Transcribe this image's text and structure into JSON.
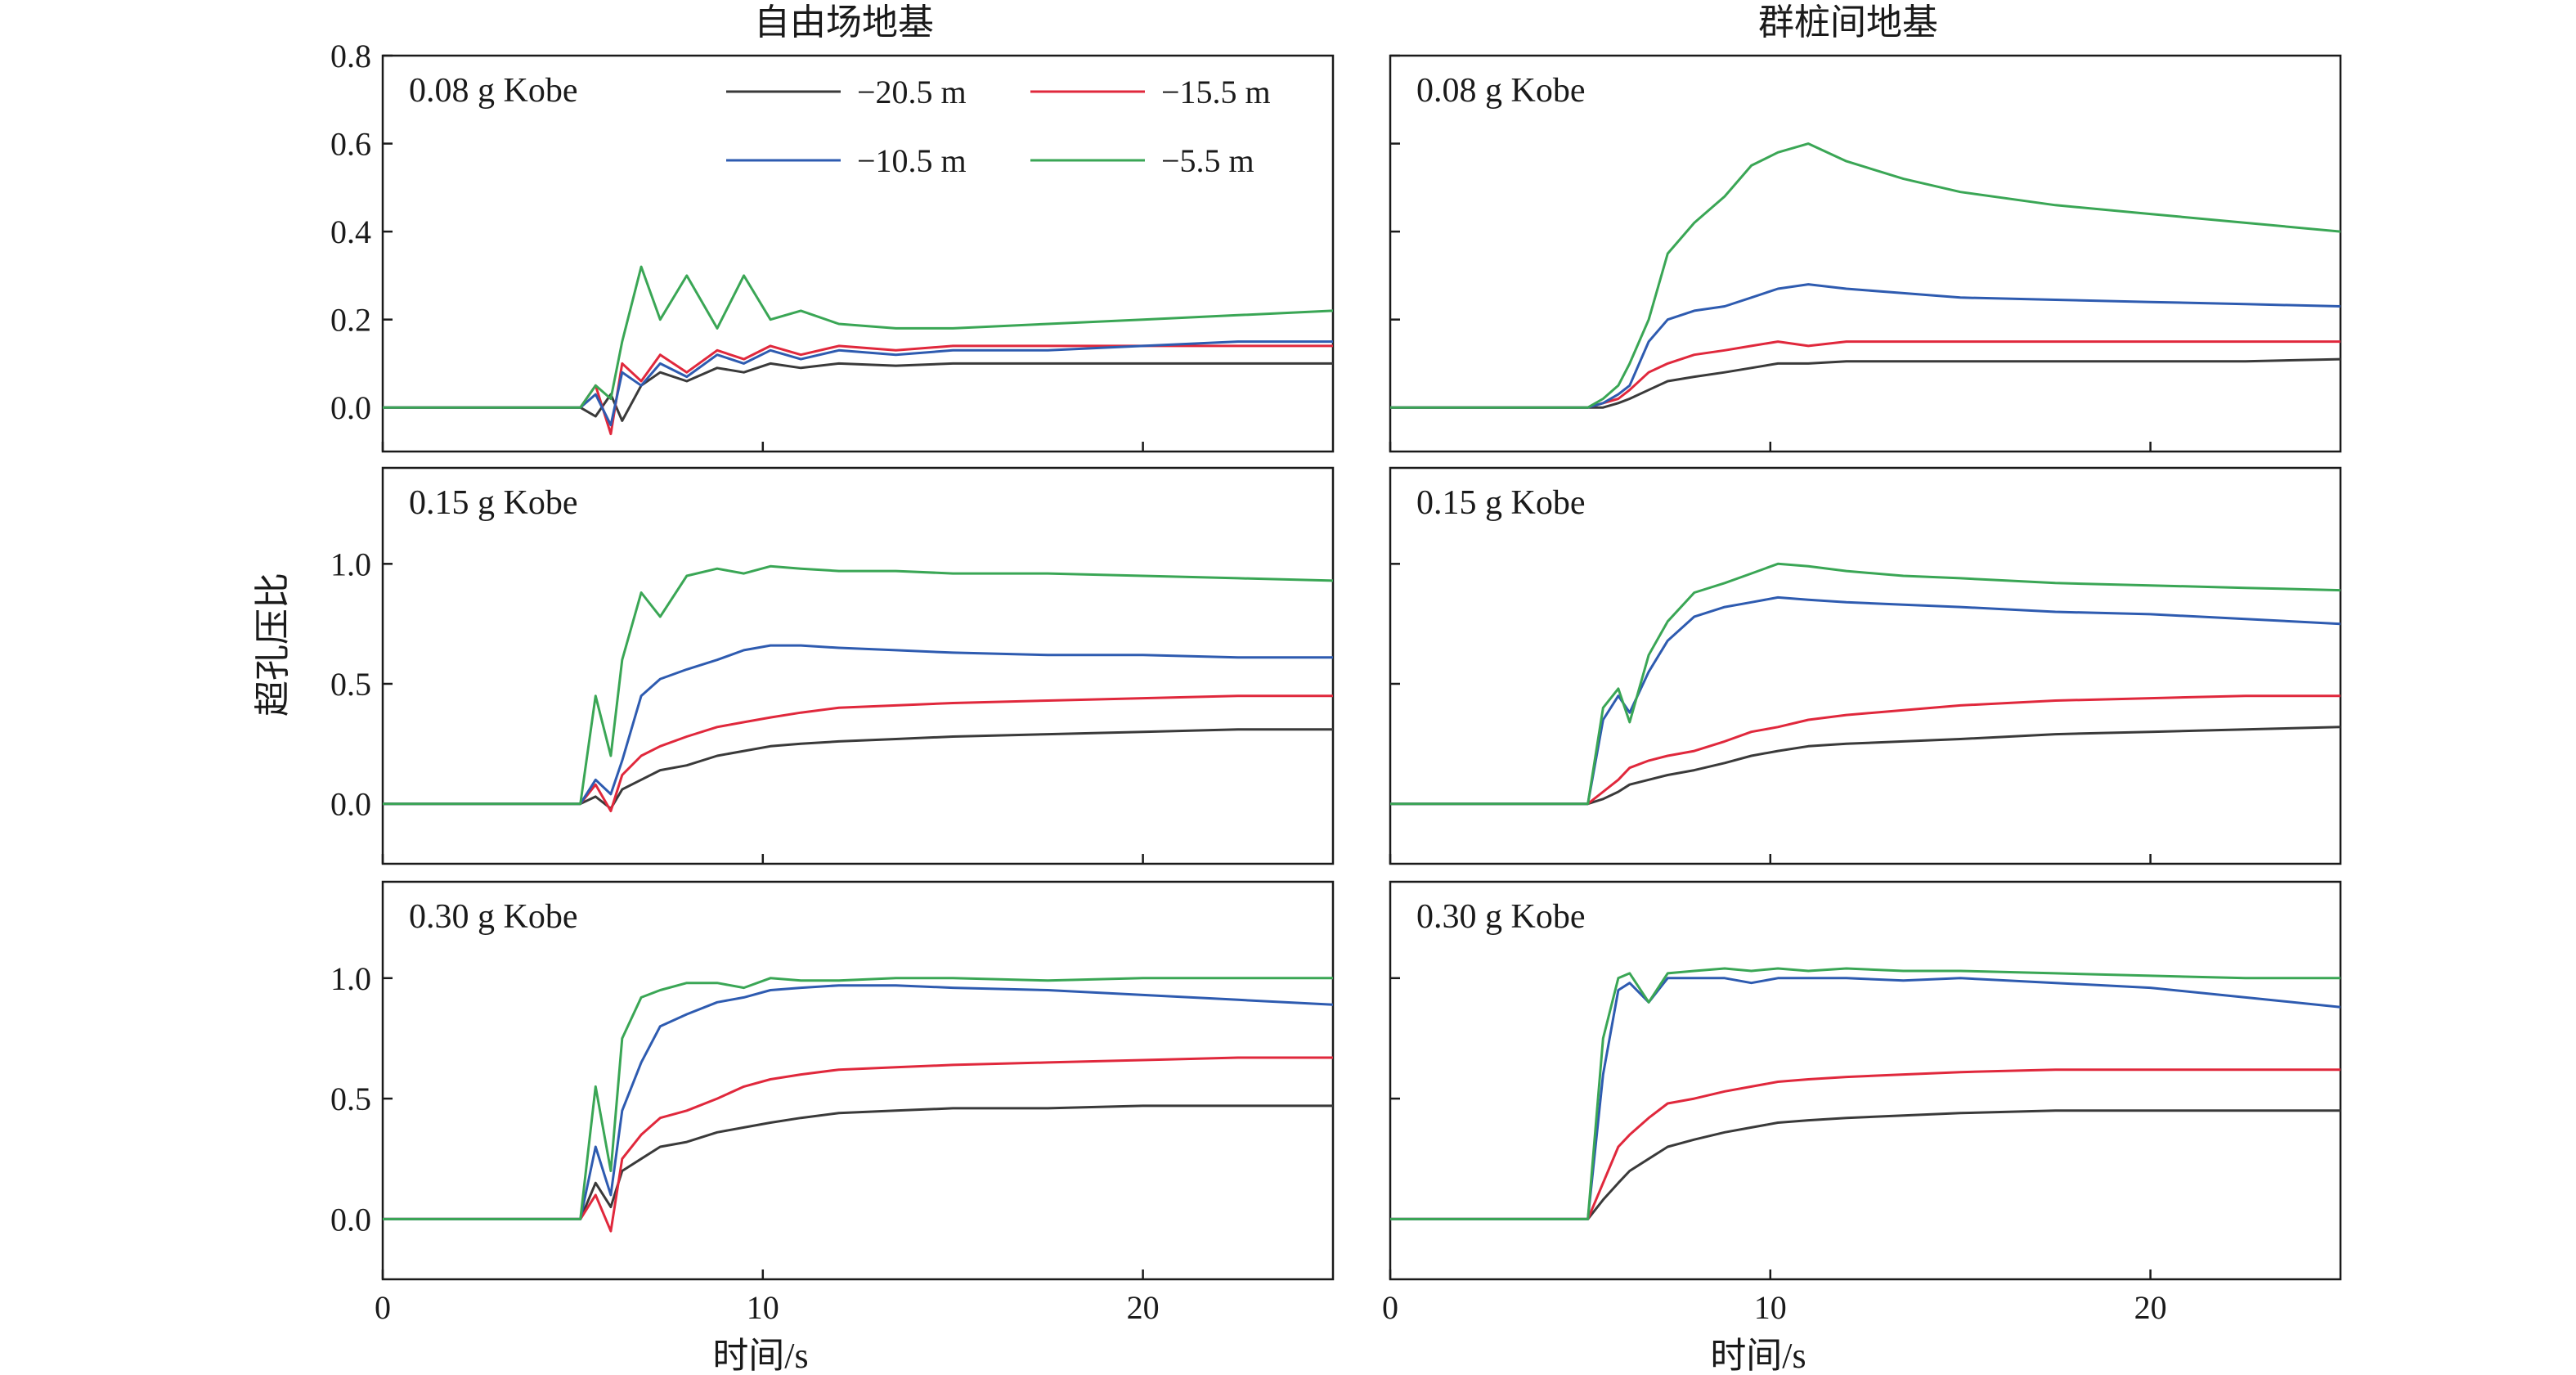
{
  "chart_data": {
    "type": "line",
    "columns": [
      "自由场地基",
      "群桩间地基"
    ],
    "xlabel": "时间/s",
    "ylabel": "超孔压比",
    "xlim": [
      0,
      25
    ],
    "xticks": [
      0,
      10,
      20
    ],
    "grid": false,
    "legend_placement": "top-left panel, upper-right",
    "series_meta": [
      {
        "name": "−20.5 m",
        "color": "#3a3a3a"
      },
      {
        "name": "−15.5 m",
        "color": "#e0283c"
      },
      {
        "name": "−10.5 m",
        "color": "#2e5bb0"
      },
      {
        "name": "−5.5 m",
        "color": "#3aa655"
      }
    ],
    "panels": [
      {
        "row": 0,
        "col": 0,
        "label": "0.08 g Kobe",
        "ylim": [
          -0.1,
          0.8
        ],
        "yticks": [
          0.0,
          0.2,
          0.4,
          0.6,
          0.8
        ],
        "ytick_labels": [
          "0.0",
          "0.2",
          "0.4",
          "0.6",
          "0.8"
        ],
        "x": [
          0,
          5.2,
          5.6,
          6.0,
          6.3,
          6.8,
          7.3,
          8.0,
          8.8,
          9.5,
          10.2,
          11.0,
          12.0,
          13.5,
          15.0,
          17.5,
          20.0,
          22.5,
          25
        ],
        "series": [
          [
            0,
            0,
            -0.02,
            0.03,
            -0.03,
            0.05,
            0.08,
            0.06,
            0.09,
            0.08,
            0.1,
            0.09,
            0.1,
            0.095,
            0.1,
            0.1,
            0.1,
            0.1,
            0.1
          ],
          [
            0,
            0,
            0.05,
            -0.06,
            0.1,
            0.06,
            0.12,
            0.08,
            0.13,
            0.11,
            0.14,
            0.12,
            0.14,
            0.13,
            0.14,
            0.14,
            0.14,
            0.14,
            0.14
          ],
          [
            0,
            0,
            0.03,
            -0.04,
            0.08,
            0.05,
            0.1,
            0.07,
            0.12,
            0.1,
            0.13,
            0.11,
            0.13,
            0.12,
            0.13,
            0.13,
            0.14,
            0.15,
            0.15
          ],
          [
            0,
            0,
            0.05,
            0.02,
            0.15,
            0.32,
            0.2,
            0.3,
            0.18,
            0.3,
            0.2,
            0.22,
            0.19,
            0.18,
            0.18,
            0.19,
            0.2,
            0.21,
            0.22
          ]
        ]
      },
      {
        "row": 0,
        "col": 1,
        "label": "0.08 g Kobe",
        "ylim": [
          -0.1,
          0.8
        ],
        "yticks": [
          0.0,
          0.2,
          0.4,
          0.6,
          0.8
        ],
        "ytick_labels": [
          "",
          "",
          "",
          "",
          ""
        ],
        "x": [
          0,
          5.2,
          5.6,
          6.0,
          6.3,
          6.8,
          7.3,
          8.0,
          8.8,
          9.5,
          10.2,
          11.0,
          12.0,
          13.5,
          15.0,
          17.5,
          20.0,
          22.5,
          25
        ],
        "series": [
          [
            0,
            0,
            0.0,
            0.01,
            0.02,
            0.04,
            0.06,
            0.07,
            0.08,
            0.09,
            0.1,
            0.1,
            0.105,
            0.105,
            0.105,
            0.105,
            0.105,
            0.105,
            0.11
          ],
          [
            0,
            0,
            0.01,
            0.02,
            0.04,
            0.08,
            0.1,
            0.12,
            0.13,
            0.14,
            0.15,
            0.14,
            0.15,
            0.15,
            0.15,
            0.15,
            0.15,
            0.15,
            0.15
          ],
          [
            0,
            0,
            0.01,
            0.03,
            0.05,
            0.15,
            0.2,
            0.22,
            0.23,
            0.25,
            0.27,
            0.28,
            0.27,
            0.26,
            0.25,
            0.245,
            0.24,
            0.235,
            0.23
          ],
          [
            0,
            0,
            0.02,
            0.05,
            0.1,
            0.2,
            0.35,
            0.42,
            0.48,
            0.55,
            0.58,
            0.6,
            0.56,
            0.52,
            0.49,
            0.46,
            0.44,
            0.42,
            0.4
          ]
        ]
      },
      {
        "row": 1,
        "col": 0,
        "label": "0.15 g Kobe",
        "ylim": [
          -0.25,
          1.4
        ],
        "yticks": [
          0.0,
          0.5,
          1.0
        ],
        "ytick_labels": [
          "0.0",
          "0.5",
          "1.0"
        ],
        "x": [
          0,
          5.2,
          5.6,
          6.0,
          6.3,
          6.8,
          7.3,
          8.0,
          8.8,
          9.5,
          10.2,
          11.0,
          12.0,
          13.5,
          15.0,
          17.5,
          20.0,
          22.5,
          25
        ],
        "series": [
          [
            0,
            0,
            0.03,
            -0.02,
            0.06,
            0.1,
            0.14,
            0.16,
            0.2,
            0.22,
            0.24,
            0.25,
            0.26,
            0.27,
            0.28,
            0.29,
            0.3,
            0.31,
            0.31
          ],
          [
            0,
            0,
            0.08,
            -0.03,
            0.12,
            0.2,
            0.24,
            0.28,
            0.32,
            0.34,
            0.36,
            0.38,
            0.4,
            0.41,
            0.42,
            0.43,
            0.44,
            0.45,
            0.45
          ],
          [
            0,
            0,
            0.1,
            0.04,
            0.18,
            0.45,
            0.52,
            0.56,
            0.6,
            0.64,
            0.66,
            0.66,
            0.65,
            0.64,
            0.63,
            0.62,
            0.62,
            0.61,
            0.61
          ],
          [
            0,
            0,
            0.45,
            0.2,
            0.6,
            0.88,
            0.78,
            0.95,
            0.98,
            0.96,
            0.99,
            0.98,
            0.97,
            0.97,
            0.96,
            0.96,
            0.95,
            0.94,
            0.93
          ]
        ]
      },
      {
        "row": 1,
        "col": 1,
        "label": "0.15 g Kobe",
        "ylim": [
          -0.25,
          1.4
        ],
        "yticks": [
          0.0,
          0.5,
          1.0
        ],
        "ytick_labels": [
          "",
          "",
          ""
        ],
        "x": [
          0,
          5.2,
          5.6,
          6.0,
          6.3,
          6.8,
          7.3,
          8.0,
          8.8,
          9.5,
          10.2,
          11.0,
          12.0,
          13.5,
          15.0,
          17.5,
          20.0,
          22.5,
          25
        ],
        "series": [
          [
            0,
            0,
            0.02,
            0.05,
            0.08,
            0.1,
            0.12,
            0.14,
            0.17,
            0.2,
            0.22,
            0.24,
            0.25,
            0.26,
            0.27,
            0.29,
            0.3,
            0.31,
            0.32
          ],
          [
            0,
            0,
            0.05,
            0.1,
            0.15,
            0.18,
            0.2,
            0.22,
            0.26,
            0.3,
            0.32,
            0.35,
            0.37,
            0.39,
            0.41,
            0.43,
            0.44,
            0.45,
            0.45
          ],
          [
            0,
            0,
            0.35,
            0.45,
            0.38,
            0.55,
            0.68,
            0.78,
            0.82,
            0.84,
            0.86,
            0.85,
            0.84,
            0.83,
            0.82,
            0.8,
            0.79,
            0.77,
            0.75
          ],
          [
            0,
            0,
            0.4,
            0.48,
            0.34,
            0.62,
            0.76,
            0.88,
            0.92,
            0.96,
            1.0,
            0.99,
            0.97,
            0.95,
            0.94,
            0.92,
            0.91,
            0.9,
            0.89
          ]
        ]
      },
      {
        "row": 2,
        "col": 0,
        "label": "0.30 g Kobe",
        "ylim": [
          -0.25,
          1.4
        ],
        "yticks": [
          0.0,
          0.5,
          1.0
        ],
        "ytick_labels": [
          "0.0",
          "0.5",
          "1.0"
        ],
        "x": [
          0,
          5.2,
          5.6,
          6.0,
          6.3,
          6.8,
          7.3,
          8.0,
          8.8,
          9.5,
          10.2,
          11.0,
          12.0,
          13.5,
          15.0,
          17.5,
          20.0,
          22.5,
          25
        ],
        "series": [
          [
            0,
            0,
            0.15,
            0.05,
            0.2,
            0.25,
            0.3,
            0.32,
            0.36,
            0.38,
            0.4,
            0.42,
            0.44,
            0.45,
            0.46,
            0.46,
            0.47,
            0.47,
            0.47
          ],
          [
            0,
            0,
            0.1,
            -0.05,
            0.25,
            0.35,
            0.42,
            0.45,
            0.5,
            0.55,
            0.58,
            0.6,
            0.62,
            0.63,
            0.64,
            0.65,
            0.66,
            0.67,
            0.67
          ],
          [
            0,
            0,
            0.3,
            0.1,
            0.45,
            0.65,
            0.8,
            0.85,
            0.9,
            0.92,
            0.95,
            0.96,
            0.97,
            0.97,
            0.96,
            0.95,
            0.93,
            0.91,
            0.89
          ],
          [
            0,
            0,
            0.55,
            0.2,
            0.75,
            0.92,
            0.95,
            0.98,
            0.98,
            0.96,
            1.0,
            0.99,
            0.99,
            1.0,
            1.0,
            0.99,
            1.0,
            1.0,
            1.0
          ]
        ]
      },
      {
        "row": 2,
        "col": 1,
        "label": "0.30 g Kobe",
        "ylim": [
          -0.25,
          1.4
        ],
        "yticks": [
          0.0,
          0.5,
          1.0
        ],
        "ytick_labels": [
          "",
          "",
          ""
        ],
        "x": [
          0,
          5.2,
          5.6,
          6.0,
          6.3,
          6.8,
          7.3,
          8.0,
          8.8,
          9.5,
          10.2,
          11.0,
          12.0,
          13.5,
          15.0,
          17.5,
          20.0,
          22.5,
          25
        ],
        "series": [
          [
            0,
            0,
            0.08,
            0.15,
            0.2,
            0.25,
            0.3,
            0.33,
            0.36,
            0.38,
            0.4,
            0.41,
            0.42,
            0.43,
            0.44,
            0.45,
            0.45,
            0.45,
            0.45
          ],
          [
            0,
            0,
            0.15,
            0.3,
            0.35,
            0.42,
            0.48,
            0.5,
            0.53,
            0.55,
            0.57,
            0.58,
            0.59,
            0.6,
            0.61,
            0.62,
            0.62,
            0.62,
            0.62
          ],
          [
            0,
            0,
            0.6,
            0.95,
            0.98,
            0.9,
            1.0,
            1.0,
            1.0,
            0.98,
            1.0,
            1.0,
            1.0,
            0.99,
            1.0,
            0.98,
            0.96,
            0.92,
            0.88
          ],
          [
            0,
            0,
            0.75,
            1.0,
            1.02,
            0.9,
            1.02,
            1.03,
            1.04,
            1.03,
            1.04,
            1.03,
            1.04,
            1.03,
            1.03,
            1.02,
            1.01,
            1.0,
            1.0
          ]
        ]
      }
    ]
  }
}
